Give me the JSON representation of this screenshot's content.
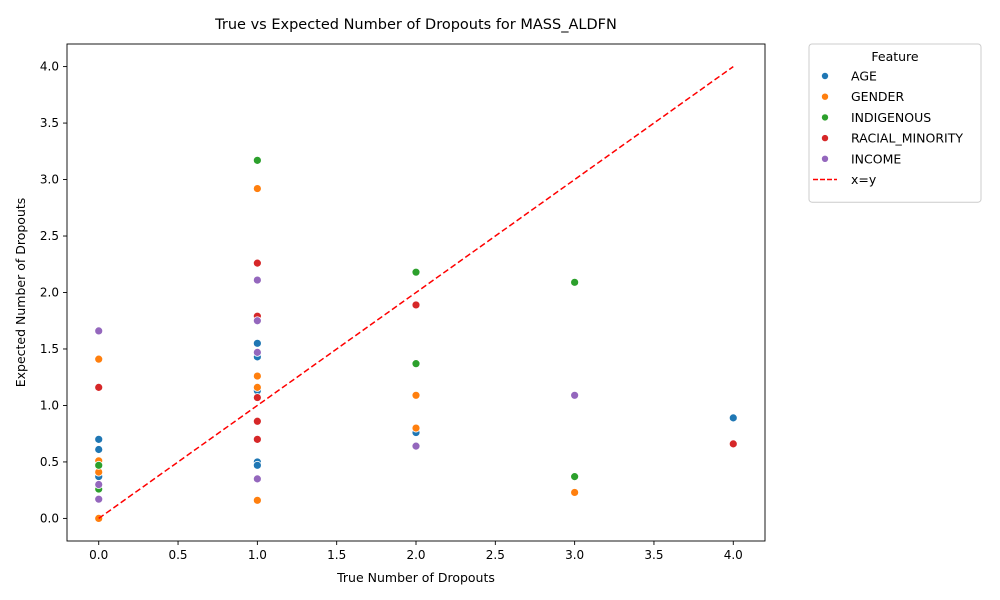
{
  "chart_data": {
    "type": "scatter",
    "title": "True vs Expected Number of Dropouts for MASS_ALDFN",
    "xlabel": "True Number of Dropouts",
    "ylabel": "Expected Number of Dropouts",
    "xlim": [
      -0.2,
      4.2
    ],
    "ylim": [
      -0.2,
      4.2
    ],
    "xticks": [
      "0.0",
      "0.5",
      "1.0",
      "1.5",
      "2.0",
      "2.5",
      "3.0",
      "3.5",
      "4.0"
    ],
    "yticks": [
      "0.0",
      "0.5",
      "1.0",
      "1.5",
      "2.0",
      "2.5",
      "3.0",
      "3.5",
      "4.0"
    ],
    "grid": false,
    "legend": {
      "title": "Feature",
      "placement": "outside-top-right"
    },
    "series": [
      {
        "name": "AGE",
        "color": "#1f77b4",
        "points": [
          [
            0,
            0.7
          ],
          [
            0,
            0.61
          ],
          [
            0,
            0.37
          ],
          [
            1,
            1.55
          ],
          [
            1,
            1.43
          ],
          [
            1,
            1.13
          ],
          [
            1,
            0.5
          ],
          [
            1,
            0.47
          ],
          [
            2,
            0.76
          ],
          [
            4,
            0.89
          ]
        ]
      },
      {
        "name": "GENDER",
        "color": "#ff7f0e",
        "points": [
          [
            0,
            1.41
          ],
          [
            0,
            0.51
          ],
          [
            0,
            0.41
          ],
          [
            0,
            0.0
          ],
          [
            1,
            2.92
          ],
          [
            1,
            1.26
          ],
          [
            1,
            1.16
          ],
          [
            1,
            0.16
          ],
          [
            2,
            1.09
          ],
          [
            2,
            0.8
          ],
          [
            3,
            0.23
          ]
        ]
      },
      {
        "name": "INDIGENOUS",
        "color": "#2ca02c",
        "points": [
          [
            0,
            0.47
          ],
          [
            0,
            0.26
          ],
          [
            1,
            3.17
          ],
          [
            2,
            2.18
          ],
          [
            2,
            1.37
          ],
          [
            3,
            2.09
          ],
          [
            3,
            0.37
          ]
        ]
      },
      {
        "name": "RACIAL_MINORITY",
        "color": "#d62728",
        "points": [
          [
            0,
            1.16
          ],
          [
            1,
            2.26
          ],
          [
            1,
            1.79
          ],
          [
            1,
            1.07
          ],
          [
            1,
            0.86
          ],
          [
            1,
            0.7
          ],
          [
            2,
            1.89
          ],
          [
            4,
            0.66
          ]
        ]
      },
      {
        "name": "INCOME",
        "color": "#9467bd",
        "points": [
          [
            0,
            1.66
          ],
          [
            0,
            0.3
          ],
          [
            0,
            0.17
          ],
          [
            1,
            2.11
          ],
          [
            1,
            1.75
          ],
          [
            1,
            1.47
          ],
          [
            1,
            0.35
          ],
          [
            2,
            0.64
          ],
          [
            3,
            1.09
          ]
        ]
      }
    ],
    "reference_line": {
      "name": "x=y",
      "color": "#ff0000",
      "from": [
        0,
        0
      ],
      "to": [
        4,
        4
      ]
    }
  }
}
